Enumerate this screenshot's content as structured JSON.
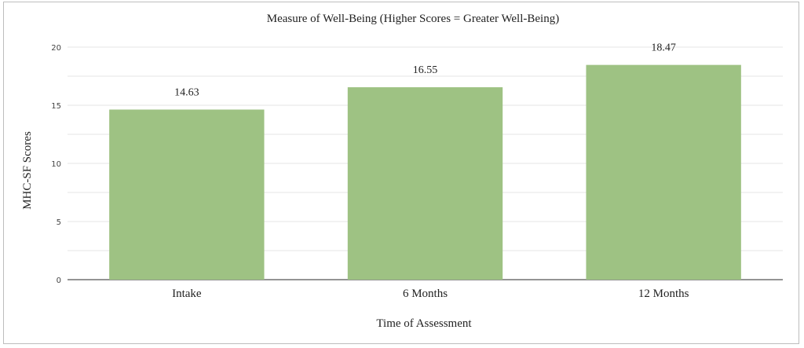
{
  "chart_data": {
    "type": "bar",
    "title": "Measure of Well-Being (Higher Scores = Greater Well-Being)",
    "xlabel": "Time of Assessment",
    "ylabel": "MHC-SF Scores",
    "categories": [
      "Intake",
      "6 Months",
      "12 Months"
    ],
    "values": [
      14.63,
      16.55,
      18.47
    ],
    "data_labels": [
      "14.63",
      "16.55",
      "18.47"
    ],
    "ylim": [
      0,
      20
    ],
    "yticks": [
      "0",
      "5",
      "10",
      "15",
      "20"
    ],
    "grid": true,
    "bar_color": "#9ec283",
    "gridline_color": "#e6e6e6",
    "axis_color": "#555555"
  }
}
